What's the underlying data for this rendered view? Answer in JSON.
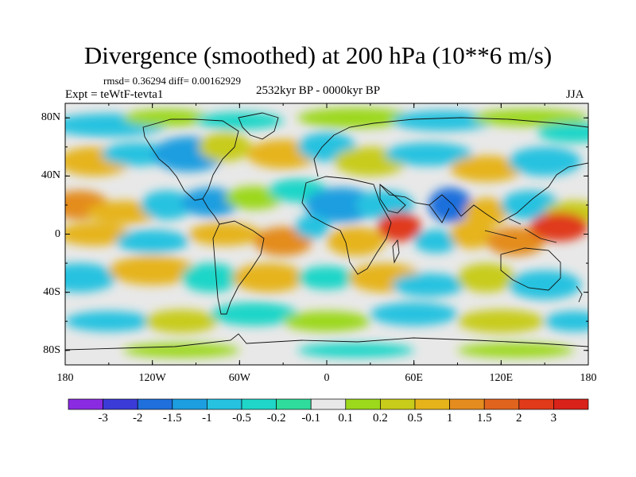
{
  "title": "Divergence (smoothed) at 200 hPa (10**6 m/s)",
  "stats": "rmsd= 0.36294  diff= 0.00162929",
  "experiment": "Expt = teWtF-tevta1",
  "period": "2532kyr BP - 0000kyr BP",
  "season": "JJA",
  "latitude_labels": [
    "80N",
    "40N",
    "0",
    "40S",
    "80S"
  ],
  "longitude_labels": [
    "180",
    "120W",
    "60W",
    "0",
    "60E",
    "120E",
    "180"
  ],
  "colorbar": {
    "labels": [
      "-3",
      "-2",
      "-1.5",
      "-1",
      "-0.5",
      "-0.2",
      "-0.1",
      "0.1",
      "0.2",
      "0.5",
      "1",
      "1.5",
      "2",
      "3"
    ],
    "colors": [
      "#8a2be2",
      "#3b3bd8",
      "#1f6fdc",
      "#1c9ee0",
      "#26c2e0",
      "#1fd6c8",
      "#2fdc9c",
      "#e8e8e8",
      "#9cd81c",
      "#c8cc1a",
      "#e6b41a",
      "#e48c1e",
      "#e0641e",
      "#e03a1a",
      "#d8221a"
    ]
  },
  "chart_data": {
    "type": "heatmap",
    "title": "Divergence (smoothed) at 200 hPa (10**6 m/s)",
    "x_range": [
      -180,
      180
    ],
    "y_range": [
      -90,
      90
    ],
    "levels": [
      -3,
      -2,
      -1.5,
      -1,
      -0.5,
      -0.2,
      -0.1,
      0.1,
      0.2,
      0.5,
      1,
      1.5,
      2,
      3
    ],
    "features": [
      {
        "lon": 50,
        "lat": 5,
        "value": 2
      },
      {
        "lon": 160,
        "lat": 5,
        "value": 2
      },
      {
        "lon": -80,
        "lat": 20,
        "value": -1
      },
      {
        "lon": 85,
        "lat": 20,
        "value": -1.5
      },
      {
        "lon": 10,
        "lat": 20,
        "value": -1
      },
      {
        "lon": -20,
        "lat": -5,
        "value": 1
      },
      {
        "lon": 120,
        "lat": -10,
        "value": 1
      },
      {
        "lon": -150,
        "lat": 10,
        "value": 1
      },
      {
        "lon": -100,
        "lat": -20,
        "value": 0.5
      },
      {
        "lon": 60,
        "lat": -30,
        "value": -0.5
      }
    ]
  }
}
